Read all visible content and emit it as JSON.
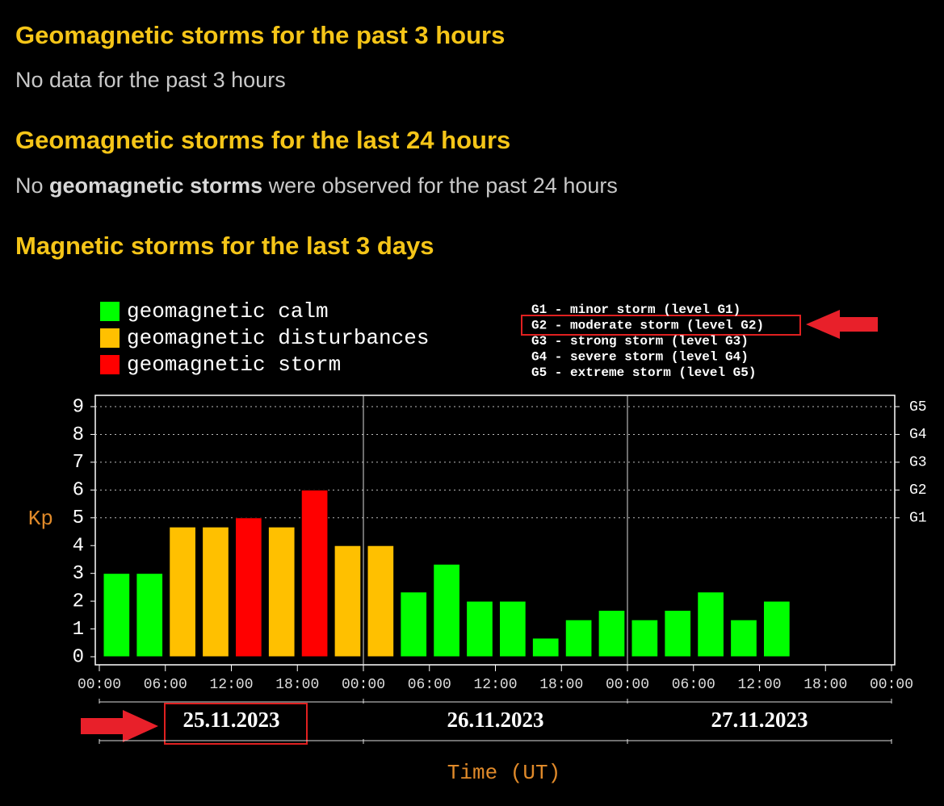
{
  "sections": [
    {
      "title": "Geomagnetic storms for the past 3 hours",
      "text": "No data for the past 3 hours"
    },
    {
      "title": "Geomagnetic storms for the last 24 hours",
      "text_parts": [
        "No ",
        "geomagnetic storms",
        " were observed for the past 24 hours"
      ]
    },
    {
      "title": "Magnetic storms for the last 3 days"
    }
  ],
  "chart_data": {
    "type": "bar",
    "ylabel": "Kp",
    "xlabel": "Time (UT)",
    "legend": [
      {
        "name": "geomagnetic calm",
        "color": "#00ff00"
      },
      {
        "name": "geomagnetic disturbances",
        "color": "#ffc000"
      },
      {
        "name": "geomagnetic storm",
        "color": "#ff0000"
      }
    ],
    "storm_levels": [
      "G1 - minor storm (level G1)",
      "G2 - moderate storm (level G2)",
      "G3 - strong storm (level G3)",
      "G4 - severe storm (level G4)",
      "G5 - extreme storm (level G5)"
    ],
    "x": [
      0,
      3,
      6,
      9,
      12,
      15,
      18,
      21,
      24,
      27,
      30,
      33,
      36,
      39,
      42,
      45,
      48,
      51,
      54,
      57,
      60
    ],
    "values": [
      3,
      3,
      4.67,
      4.67,
      5,
      4.67,
      6,
      4,
      4,
      2.33,
      3.33,
      2,
      2,
      0.67,
      1.33,
      1.67,
      1.33,
      1.67,
      2.33,
      1.33,
      2
    ],
    "colors": [
      "#00ff00",
      "#00ff00",
      "#ffc000",
      "#ffc000",
      "#ff0000",
      "#ffc000",
      "#ff0000",
      "#ffc000",
      "#ffc000",
      "#00ff00",
      "#00ff00",
      "#00ff00",
      "#00ff00",
      "#00ff00",
      "#00ff00",
      "#00ff00",
      "#00ff00",
      "#00ff00",
      "#00ff00",
      "#00ff00",
      "#00ff00"
    ],
    "xlim": [
      0,
      72
    ],
    "xticks": [
      {
        "value": 0,
        "label": "00:00"
      },
      {
        "value": 6,
        "label": "06:00"
      },
      {
        "value": 12,
        "label": "12:00"
      },
      {
        "value": 18,
        "label": "18:00"
      },
      {
        "value": 24,
        "label": "00:00"
      },
      {
        "value": 30,
        "label": "06:00"
      },
      {
        "value": 36,
        "label": "12:00"
      },
      {
        "value": 42,
        "label": "18:00"
      },
      {
        "value": 48,
        "label": "00:00"
      },
      {
        "value": 54,
        "label": "06:00"
      },
      {
        "value": 60,
        "label": "12:00"
      },
      {
        "value": 66,
        "label": "18:00"
      },
      {
        "value": 72,
        "label": "00:00"
      }
    ],
    "ylim": [
      0,
      9
    ],
    "yticks": [
      0,
      1,
      2,
      3,
      4,
      5,
      6,
      7,
      8,
      9
    ],
    "y2lim": [
      0,
      9
    ],
    "y2ticks": [
      {
        "value": 5,
        "label": "G1"
      },
      {
        "value": 6,
        "label": "G2"
      },
      {
        "value": 7,
        "label": "G3"
      },
      {
        "value": 8,
        "label": "G4"
      },
      {
        "value": 9,
        "label": "G5"
      }
    ],
    "date_labels": [
      "25.11.2023",
      "26.11.2023",
      "27.11.2023"
    ],
    "grid": true
  }
}
